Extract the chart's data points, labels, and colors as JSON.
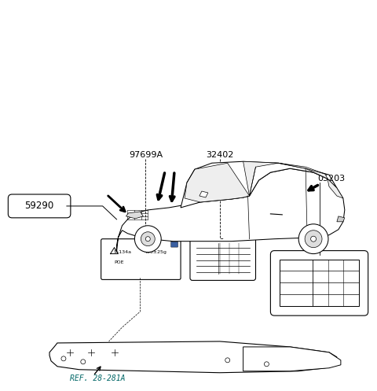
{
  "bg_color": "#ffffff",
  "line_color": "#000000",
  "label_59290": "59290",
  "label_97699A": "97699A",
  "label_32402": "32402",
  "label_05203": "05203",
  "label_ref": "REF. 28-281A",
  "fig_width": 4.8,
  "fig_height": 4.97,
  "dpi": 100,
  "sticker_blue": "#3a5fa0",
  "ref_color": "#006666"
}
